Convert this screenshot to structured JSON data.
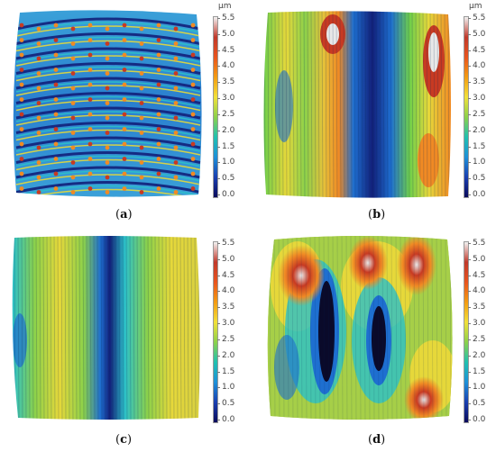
{
  "panels": [
    {
      "id": "a",
      "caption_open": "(",
      "caption_letter": "a",
      "caption_close": ")"
    },
    {
      "id": "b",
      "caption_open": "(",
      "caption_letter": "b",
      "caption_close": ")"
    },
    {
      "id": "c",
      "caption_open": "(",
      "caption_letter": "c",
      "caption_close": ")"
    },
    {
      "id": "d",
      "caption_open": "(",
      "caption_letter": "d",
      "caption_close": ")"
    }
  ],
  "colorbar": {
    "unit": "µm",
    "ticks": [
      "5.5",
      "5.0",
      "4.5",
      "4.0",
      "3.5",
      "3.0",
      "2.5",
      "2.0",
      "1.5",
      "1.0",
      "0.5",
      "0.0"
    ],
    "gradient_colors": [
      "#f2f2f2",
      "#c0392b",
      "#e8541e",
      "#f39c12",
      "#f1e03a",
      "#8cd14a",
      "#20c0b0",
      "#1e90d8",
      "#1a3fb0",
      "#0a0a5a"
    ]
  },
  "surface_colors": {
    "dark_blue": "#12207a",
    "blue": "#1e6fd0",
    "cyan": "#2cc0c8",
    "green": "#6fcf4a",
    "yellow": "#e6d83a",
    "orange": "#f08a24",
    "red": "#c83a22",
    "white": "#e8e8e8"
  }
}
